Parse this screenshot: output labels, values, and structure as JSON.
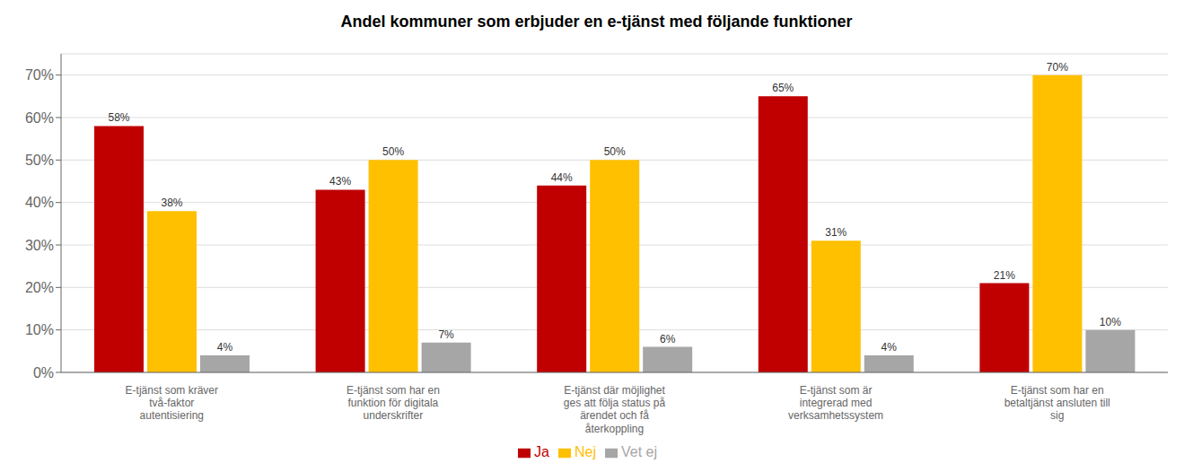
{
  "chart_data": {
    "type": "bar",
    "title": "Andel kommuner som erbjuder en e-tjänst med följande funktioner",
    "categories": [
      "E-tjänst som kräver\ntvå-faktor\nautentisiering",
      "E-tjänst som har en\nfunktion för digitala\nunderskrifter",
      "E-tjänst där möjlighet\nges att följa status på\närendet och få\nåterkoppling",
      "E-tjänst som är\nintegrerad med\nverksamhetssystem",
      "E-tjänst som har en\nbetaltjänst ansluten till\nsig"
    ],
    "series": [
      {
        "name": "Ja",
        "color": "#C00000",
        "values": [
          58,
          43,
          44,
          65,
          21
        ],
        "value_labels": [
          "58%",
          "43%",
          "44%",
          "65%",
          "21%"
        ]
      },
      {
        "name": "Nej",
        "color": "#FFC000",
        "values": [
          38,
          50,
          50,
          31,
          70
        ],
        "value_labels": [
          "38%",
          "50%",
          "50%",
          "31%",
          "70%"
        ]
      },
      {
        "name": "Vet ej",
        "color": "#A6A6A6",
        "values": [
          4,
          7,
          6,
          4,
          10
        ],
        "value_labels": [
          "4%",
          "7%",
          "6%",
          "4%",
          "10%"
        ]
      }
    ],
    "ylim": [
      0,
      75
    ],
    "yticks": [
      {
        "value": 0,
        "label": "0%"
      },
      {
        "value": 10,
        "label": "10%"
      },
      {
        "value": 20,
        "label": "20%"
      },
      {
        "value": 30,
        "label": "30%"
      },
      {
        "value": 40,
        "label": "40%"
      },
      {
        "value": 50,
        "label": "50%"
      },
      {
        "value": 60,
        "label": "60%"
      },
      {
        "value": 70,
        "label": "70%"
      }
    ],
    "grid": true,
    "legend": "bottom",
    "data_labels": true
  }
}
